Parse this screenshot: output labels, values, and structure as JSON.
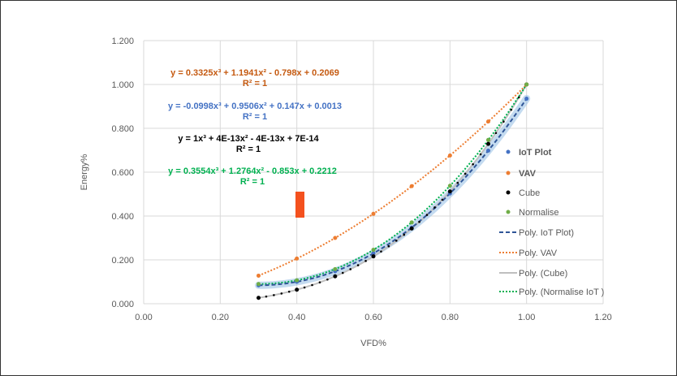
{
  "chart_data": {
    "type": "scatter",
    "xlabel": "VFD%",
    "ylabel": "Energy%",
    "xlim": [
      0,
      1.2
    ],
    "ylim": [
      0,
      1.2
    ],
    "xticks": [
      "0.00",
      "0.20",
      "0.40",
      "0.60",
      "0.80",
      "1.00",
      "1.20"
    ],
    "yticks": [
      "0.000",
      "0.200",
      "0.400",
      "0.600",
      "0.800",
      "1.000",
      "1.200"
    ],
    "grid": true,
    "legend_position": "right",
    "x": [
      0.3,
      0.4,
      0.5,
      0.6,
      0.7,
      0.8,
      0.9,
      1.0
    ],
    "series": [
      {
        "name": "IoT Plot",
        "color": "#4472C4",
        "values": [
          0.084,
          0.1,
          0.148,
          0.23,
          0.347,
          0.503,
          0.698,
          0.935
        ],
        "trend_name": "Poly.  IoT Plot)",
        "trend_style": "dashed",
        "coefficients": [
          0.3325,
          1.1941,
          -0.798,
          0.2069
        ],
        "equation": "y = 0.3325x³ + 1.1941x² - 0.798x + 0.2069",
        "r2": "R² = 1"
      },
      {
        "name": "VAV",
        "color": "#ED7D31",
        "values": [
          0.128,
          0.206,
          0.3,
          0.41,
          0.536,
          0.676,
          0.831,
          1.0
        ],
        "trend_name": "Poly.   VAV",
        "trend_style": "dotted",
        "coefficients": [
          -0.0998,
          0.9506,
          0.147,
          0.0013
        ],
        "equation": "y = -0.0998x³ + 0.9506x² + 0.147x + 0.0013",
        "r2": "R² = 1"
      },
      {
        "name": "Cube",
        "color": "#000000",
        "values": [
          0.027,
          0.064,
          0.125,
          0.216,
          0.343,
          0.512,
          0.729,
          1.0
        ],
        "trend_name": "Poly. (Cube)",
        "trend_style": "solid",
        "coefficients": [
          1,
          4e-13,
          -4e-13,
          7e-14
        ],
        "equation": "y = 1x³ + 4E-13x² - 4E-13x + 7E-14",
        "r2": "R² = 1"
      },
      {
        "name": "Normalise",
        "color": "#70AD47",
        "values": [
          0.09,
          0.107,
          0.158,
          0.246,
          0.371,
          0.538,
          0.747,
          1.0
        ],
        "trend_name": "Poly. (Normalise IoT )",
        "trend_style": "dotted",
        "coefficients": [
          0.3554,
          1.2764,
          -0.853,
          0.2212
        ],
        "equation": "y = 0.3554x³ + 1.2764x² - 0.853x + 0.2212",
        "r2": "R² = 1"
      }
    ],
    "equation_colors": [
      "#C55A11",
      "#4472C4",
      "#000000",
      "#00B050"
    ],
    "marker_annotation_color": "#F4511E"
  }
}
